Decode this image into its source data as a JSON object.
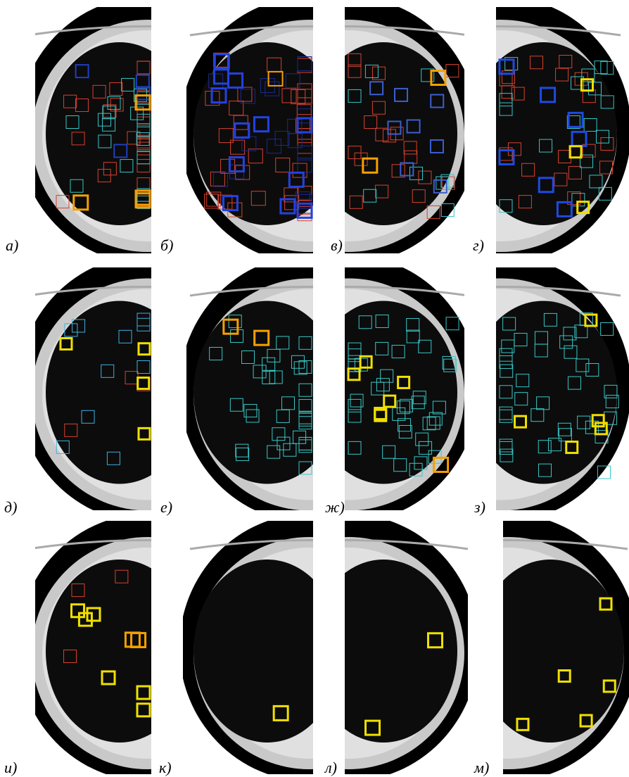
{
  "labels": [
    "а)",
    "б)",
    "в)",
    "г)",
    "д)",
    "е)",
    "ж)",
    "з)",
    "и)",
    "к)",
    "л)",
    "м)"
  ]
}
